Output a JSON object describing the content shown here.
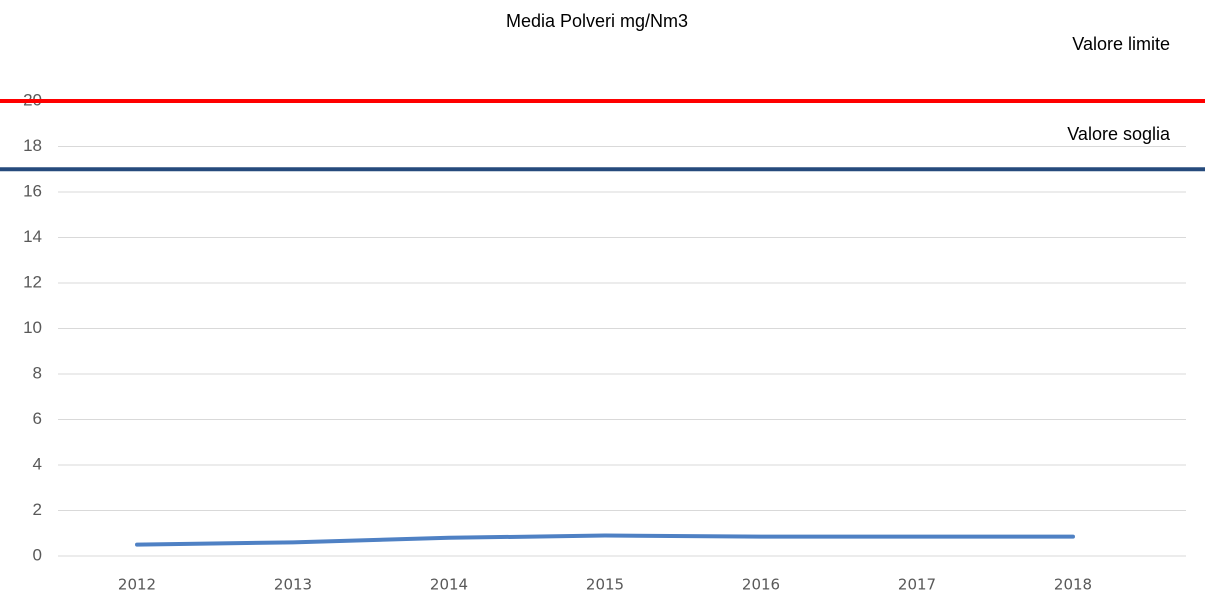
{
  "chart_data": {
    "type": "line",
    "title": "Media Polveri mg/Nm3",
    "categories": [
      "2012",
      "2013",
      "2014",
      "2015",
      "2016",
      "2017",
      "2018"
    ],
    "series": [
      {
        "color": "#4f81c4",
        "values": [
          0.5,
          0.6,
          0.8,
          0.9,
          0.85,
          0.85,
          0.85
        ]
      }
    ],
    "reference_lines": [
      {
        "name": "Valore limite",
        "value": 20,
        "color": "#ff0000"
      },
      {
        "name": "Valore soglia",
        "value": 17,
        "color": "#264a7c"
      }
    ],
    "ylim": [
      0,
      20
    ],
    "yticks": [
      0,
      2,
      4,
      6,
      8,
      10,
      12,
      14,
      16,
      18,
      20
    ],
    "grid": true
  }
}
